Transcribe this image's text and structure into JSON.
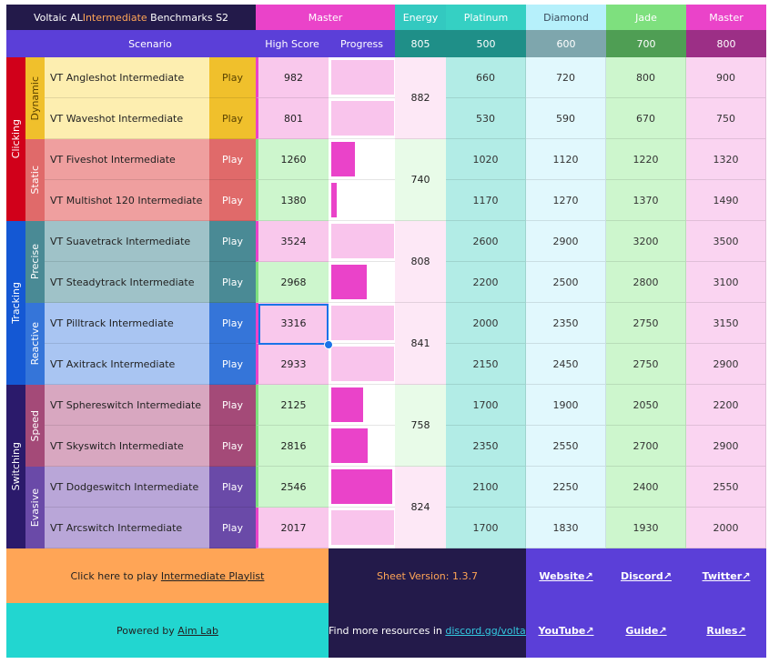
{
  "header": {
    "title_prefix": "Voltaic AL ",
    "title_highlight": "Intermediate",
    "title_suffix": " Benchmarks S2",
    "current_rank_label": "Master",
    "energy_label": "Energy",
    "rank_labels": [
      "Platinum",
      "Diamond",
      "Jade",
      "Master"
    ],
    "scenario_label": "Scenario",
    "highscore_label": "High Score",
    "progress_label": "Progress",
    "energy_value": "805",
    "rank_thresholds": [
      "500",
      "600",
      "700",
      "800"
    ]
  },
  "categories": [
    {
      "name": "Clicking",
      "subcategories": [
        {
          "name": "Dynamic",
          "energy": "882"
        },
        {
          "name": "Static",
          "energy": "740"
        }
      ]
    },
    {
      "name": "Tracking",
      "subcategories": [
        {
          "name": "Precise",
          "energy": "808"
        },
        {
          "name": "Reactive",
          "energy": "841"
        }
      ]
    },
    {
      "name": "Switching",
      "subcategories": [
        {
          "name": "Speed",
          "energy": "758"
        },
        {
          "name": "Evasive",
          "energy": "824"
        }
      ]
    }
  ],
  "play_label": "Play",
  "scenarios": [
    {
      "name": "VT Angleshot Intermediate",
      "score": "982",
      "progress": 1.0,
      "ranks": [
        "660",
        "720",
        "800",
        "900"
      ]
    },
    {
      "name": "VT Waveshot Intermediate",
      "score": "801",
      "progress": 1.0,
      "ranks": [
        "530",
        "590",
        "670",
        "750"
      ]
    },
    {
      "name": "VT Fiveshot Intermediate",
      "score": "1260",
      "progress": 0.38,
      "ranks": [
        "1020",
        "1120",
        "1220",
        "1320"
      ]
    },
    {
      "name": "VT Multishot 120 Intermediate",
      "score": "1380",
      "progress": 0.08,
      "ranks": [
        "1170",
        "1270",
        "1370",
        "1490"
      ]
    },
    {
      "name": "VT Suavetrack Intermediate",
      "score": "3524",
      "progress": 1.0,
      "ranks": [
        "2600",
        "2900",
        "3200",
        "3500"
      ]
    },
    {
      "name": "VT Steadytrack Intermediate",
      "score": "2968",
      "progress": 0.56,
      "ranks": [
        "2200",
        "2500",
        "2800",
        "3100"
      ]
    },
    {
      "name": "VT Pilltrack Intermediate",
      "score": "3316",
      "progress": 1.0,
      "ranks": [
        "2000",
        "2350",
        "2750",
        "3150"
      ]
    },
    {
      "name": "VT Axitrack Intermediate",
      "score": "2933",
      "progress": 1.0,
      "ranks": [
        "2150",
        "2450",
        "2750",
        "2900"
      ]
    },
    {
      "name": "VT Sphereswitch Intermediate",
      "score": "2125",
      "progress": 0.5,
      "ranks": [
        "1700",
        "1900",
        "2050",
        "2200"
      ]
    },
    {
      "name": "VT Skyswitch Intermediate",
      "score": "2816",
      "progress": 0.58,
      "ranks": [
        "2350",
        "2550",
        "2700",
        "2900"
      ]
    },
    {
      "name": "VT Dodgeswitch Intermediate",
      "score": "2546",
      "progress": 0.97,
      "ranks": [
        "2100",
        "2250",
        "2400",
        "2550"
      ]
    },
    {
      "name": "VT Arcswitch Intermediate",
      "score": "2017",
      "progress": 1.0,
      "ranks": [
        "1700",
        "1830",
        "1930",
        "2000"
      ]
    }
  ],
  "footer": {
    "play_prefix": "Click here to play ",
    "play_link": "Intermediate Playlist",
    "sheet_version": "Sheet Version: 1.3.7",
    "website": "Website↗",
    "discord": "Discord↗",
    "twitter": "Twitter↗",
    "powered_prefix": "Powered by ",
    "powered_link": "Aim Lab",
    "resources_prefix": "Find more resources in ",
    "resources_link": "discord.gg/voltaic",
    "youtube": "YouTube↗",
    "guide": "Guide↗",
    "rules": "Rules↗"
  },
  "colors": {
    "header_dark": "#231a4a",
    "header_purple": "#5b3fd8",
    "master_pink": "#ea43c9",
    "energy_teal": "#33c9c0",
    "platinum": "#35d0c3",
    "diamond": "#b6f0fb",
    "jade": "#7ee07e",
    "master": "#ea43c9",
    "highlight_orange": "#ffa556",
    "progress_fill": "#ea43c9",
    "progress_light": "#f9c4ec"
  }
}
